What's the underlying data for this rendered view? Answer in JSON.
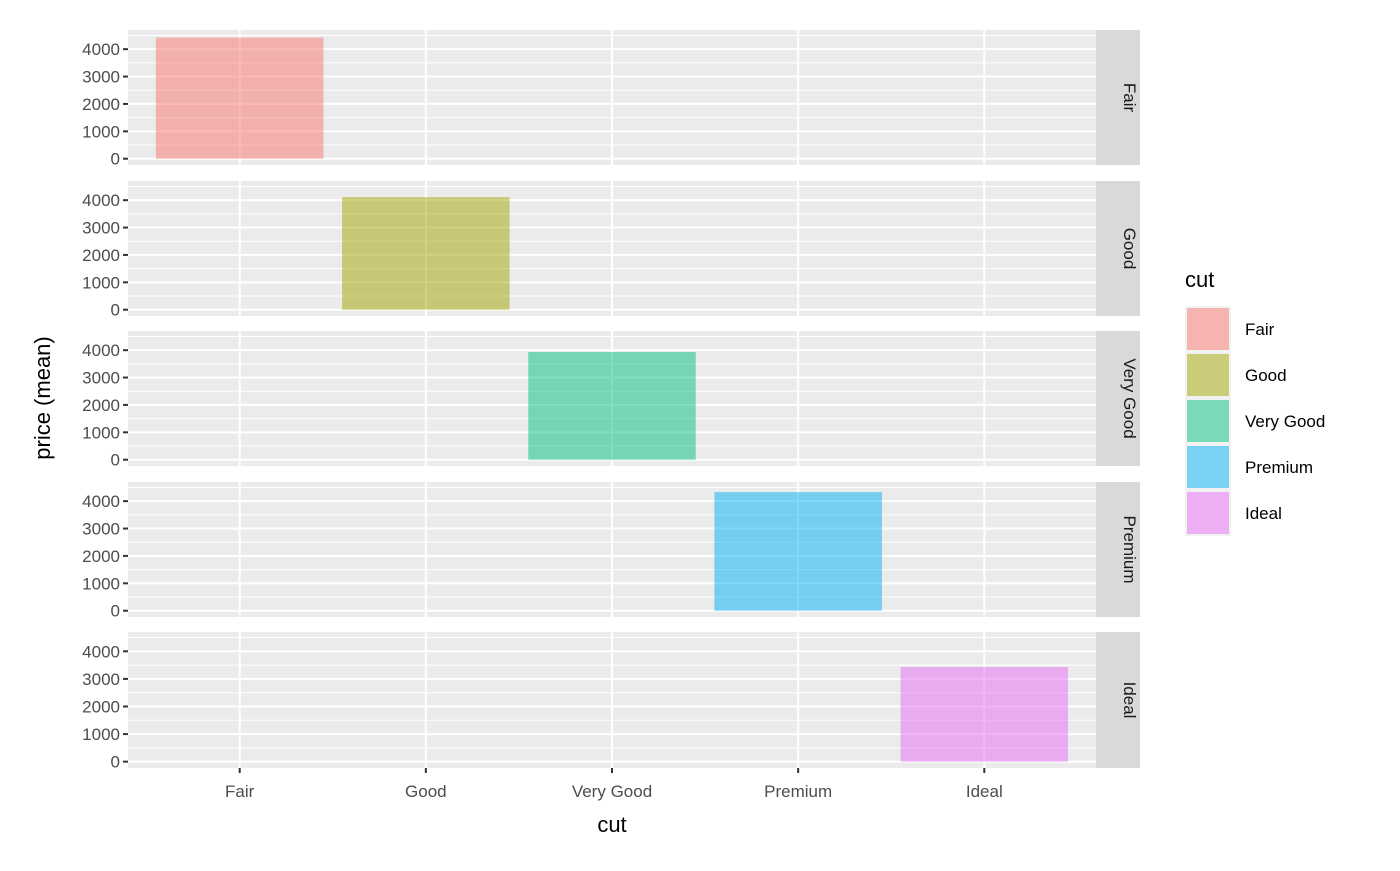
{
  "chart_data": {
    "type": "bar",
    "facet_by": "cut",
    "facet_strip_labels": [
      "Fair",
      "Good",
      "Very Good",
      "Premium",
      "Ideal"
    ],
    "categories": [
      "Fair",
      "Good",
      "Very Good",
      "Premium",
      "Ideal"
    ],
    "values": [
      4420,
      4110,
      3930,
      4330,
      3430
    ],
    "colors": [
      "#F8766D",
      "#A3A500",
      "#00BF7D",
      "#00B0F6",
      "#E76BF3"
    ],
    "fill_alpha": 0.5,
    "xlabel": "cut",
    "ylabel": "price (mean)",
    "y_ticks": [
      0,
      1000,
      2000,
      3000,
      4000
    ],
    "ylim": [
      -230,
      4700
    ],
    "grid": true,
    "legend": {
      "title": "cut",
      "position": "right",
      "entries": [
        "Fair",
        "Good",
        "Very Good",
        "Premium",
        "Ideal"
      ]
    }
  }
}
